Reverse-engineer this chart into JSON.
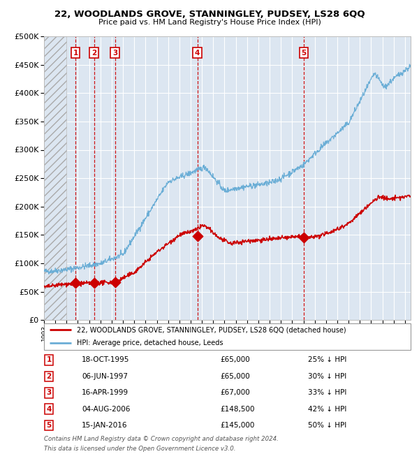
{
  "title": "22, WOODLANDS GROVE, STANNINGLEY, PUDSEY, LS28 6QQ",
  "subtitle": "Price paid vs. HM Land Registry's House Price Index (HPI)",
  "hpi_color": "#6baed6",
  "price_color": "#cc0000",
  "sale_dates_x": [
    1995.79,
    1997.43,
    1999.29,
    2006.59,
    2016.04
  ],
  "sale_prices_y": [
    65000,
    65000,
    67000,
    148500,
    145000
  ],
  "sale_labels": [
    "1",
    "2",
    "3",
    "4",
    "5"
  ],
  "sale_info": [
    {
      "label": "1",
      "date": "18-OCT-1995",
      "price": "£65,000",
      "hpi": "25% ↓ HPI"
    },
    {
      "label": "2",
      "date": "06-JUN-1997",
      "price": "£65,000",
      "hpi": "30% ↓ HPI"
    },
    {
      "label": "3",
      "date": "16-APR-1999",
      "price": "£67,000",
      "hpi": "33% ↓ HPI"
    },
    {
      "label": "4",
      "date": "04-AUG-2006",
      "price": "£148,500",
      "hpi": "42% ↓ HPI"
    },
    {
      "label": "5",
      "date": "15-JAN-2016",
      "price": "£145,000",
      "hpi": "50% ↓ HPI"
    }
  ],
  "legend_line1": "22, WOODLANDS GROVE, STANNINGLEY, PUDSEY, LS28 6QQ (detached house)",
  "legend_line2": "HPI: Average price, detached house, Leeds",
  "footnote1": "Contains HM Land Registry data © Crown copyright and database right 2024.",
  "footnote2": "This data is licensed under the Open Government Licence v3.0.",
  "ylim": [
    0,
    500000
  ],
  "xlim_start": 1993.0,
  "xlim_end": 2025.5,
  "hatch_end_year": 1995.0,
  "plot_bg_color": "#dce6f1",
  "grid_color": "#ffffff",
  "hatch_color": "#c8d4e3"
}
